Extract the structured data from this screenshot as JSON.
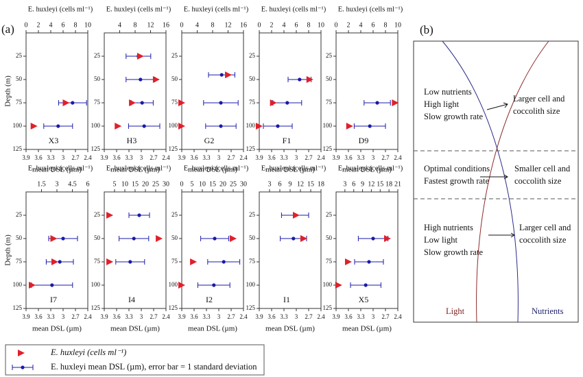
{
  "figure_labels": {
    "a": "(a)",
    "b": "(b)"
  },
  "chart_data": [
    {
      "type": "scatter",
      "title": "X3",
      "x_label": "mean DSL (µm)",
      "x2_label": "E. huxleyi (cells ml⁻¹)",
      "y_label": "Depth (m)",
      "xlim": [
        3.9,
        2.4
      ],
      "xticks": [
        3.9,
        3.6,
        3.3,
        3,
        2.7,
        2.4
      ],
      "x2lim": [
        0,
        10
      ],
      "x2ticks": [
        0,
        2,
        4,
        6,
        8,
        10
      ],
      "ylim": [
        0,
        125
      ],
      "yticks": [
        25,
        50,
        75,
        100,
        125
      ],
      "y_inverted": true,
      "y": [
        75,
        100
      ],
      "cells": {
        "color": "#e0202a",
        "values": [
          6.5,
          1.3
        ]
      },
      "dsl": {
        "color": "#1a1aa8",
        "values": [
          2.77,
          3.12
        ],
        "errors": [
          0.34,
          0.35
        ]
      }
    },
    {
      "type": "scatter",
      "title": "H3",
      "x_label": "mean DSL (µm)",
      "x2_label": "E. huxleyi (cells ml⁻¹)",
      "xlim": [
        3.9,
        2.4
      ],
      "xticks": [
        3.9,
        3.6,
        3.3,
        3,
        2.7,
        2.4
      ],
      "x2lim": [
        0,
        16
      ],
      "x2ticks": [
        4,
        8,
        12,
        16
      ],
      "ylim": [
        0,
        125
      ],
      "yticks": [
        25,
        50,
        75,
        100,
        125
      ],
      "y_inverted": true,
      "y": [
        25,
        50,
        75,
        100
      ],
      "cells": {
        "color": "#e0202a",
        "values": [
          9.4,
          13.5,
          7.3,
          3.6
        ]
      },
      "dsl": {
        "color": "#1a1aa8",
        "values": [
          3.07,
          3.02,
          2.98,
          2.93
        ],
        "errors": [
          0.3,
          0.35,
          0.27,
          0.38
        ]
      }
    },
    {
      "type": "scatter",
      "title": "G2",
      "x_label": "mean DSL (µm)",
      "x2_label": "E. huxleyi (cells ml⁻¹)",
      "xlim": [
        3.9,
        2.4
      ],
      "xticks": [
        3.9,
        3.6,
        3.3,
        3,
        2.7,
        2.4
      ],
      "x2lim": [
        0,
        16
      ],
      "x2ticks": [
        0,
        4,
        8,
        12,
        16
      ],
      "ylim": [
        0,
        125
      ],
      "yticks": [
        25,
        50,
        75,
        100,
        125
      ],
      "y_inverted": true,
      "y": [
        45,
        75,
        100
      ],
      "cells": {
        "color": "#e0202a",
        "values": [
          12.1,
          0,
          0
        ]
      },
      "dsl": {
        "color": "#1a1aa8",
        "values": [
          2.93,
          2.95,
          2.95
        ],
        "errors": [
          0.32,
          0.42,
          0.37
        ]
      }
    },
    {
      "type": "scatter",
      "title": "F1",
      "x_label": "mean DSL (µm)",
      "x2_label": "E. huxleyi (cells ml⁻¹)",
      "xlim": [
        3.9,
        2.4
      ],
      "xticks": [
        3.9,
        3.6,
        3.3,
        3,
        2.7,
        2.4
      ],
      "x2lim": [
        0,
        10
      ],
      "x2ticks": [
        0,
        2,
        4,
        6,
        8,
        10
      ],
      "ylim": [
        0,
        125
      ],
      "yticks": [
        25,
        50,
        75,
        100,
        125
      ],
      "y_inverted": true,
      "y": [
        50,
        75,
        100
      ],
      "cells": {
        "color": "#e0202a",
        "values": [
          8.2,
          2.3,
          0
        ]
      },
      "dsl": {
        "color": "#1a1aa8",
        "values": [
          2.92,
          3.22,
          3.45
        ],
        "errors": [
          0.28,
          0.35,
          0.35
        ]
      }
    },
    {
      "type": "scatter",
      "title": "D9",
      "x_label": "mean DSL (µm)",
      "x2_label": "E. huxleyi (cells ml⁻¹)",
      "xlim": [
        3.9,
        2.4
      ],
      "xticks": [
        3.9,
        3.6,
        3.3,
        3,
        2.7,
        2.4
      ],
      "x2lim": [
        0,
        10
      ],
      "x2ticks": [
        0,
        2,
        4,
        6,
        8,
        10
      ],
      "ylim": [
        0,
        125
      ],
      "yticks": [
        25,
        50,
        75,
        100,
        125
      ],
      "y_inverted": true,
      "y": [
        75,
        100
      ],
      "cells": {
        "color": "#e0202a",
        "values": [
          9.6,
          2.2
        ]
      },
      "dsl": {
        "color": "#1a1aa8",
        "values": [
          2.9,
          3.08
        ],
        "errors": [
          0.32,
          0.38
        ]
      }
    },
    {
      "type": "scatter",
      "title": "I7",
      "x_label": "mean DSL (µm)",
      "x2_label": "E. huxleyi (cells ml⁻¹)",
      "y_label": "Depth (m)",
      "xlim": [
        3.9,
        2.4
      ],
      "xticks": [
        3.9,
        3.6,
        3.3,
        3,
        2.7,
        2.4
      ],
      "x2lim": [
        0,
        6
      ],
      "x2ticks": [
        1.5,
        3,
        4.5,
        6
      ],
      "ylim": [
        0,
        125
      ],
      "yticks": [
        25,
        50,
        75,
        100,
        125
      ],
      "y_inverted": true,
      "y": [
        50,
        75,
        100
      ],
      "cells": {
        "color": "#e0202a",
        "values": [
          2.7,
          2.8,
          0.6
        ]
      },
      "dsl": {
        "color": "#1a1aa8",
        "values": [
          3.0,
          3.08,
          3.27
        ],
        "errors": [
          0.35,
          0.33,
          0.5
        ]
      }
    },
    {
      "type": "scatter",
      "title": "I4",
      "x_label": "mean DSL (µm)",
      "x2_label": "E. huxleyi (cells ml⁻¹)",
      "xlim": [
        3.9,
        2.4
      ],
      "xticks": [
        3.9,
        3.6,
        3.3,
        3,
        2.7,
        2.4
      ],
      "x2lim": [
        0,
        30
      ],
      "x2ticks": [
        5,
        10,
        15,
        20,
        25,
        30
      ],
      "ylim": [
        0,
        125
      ],
      "yticks": [
        25,
        50,
        75,
        100,
        125
      ],
      "y_inverted": true,
      "y": [
        25,
        50,
        75
      ],
      "cells": {
        "color": "#e0202a",
        "values": [
          2.7,
          26.7,
          2.7
        ]
      },
      "dsl": {
        "color": "#1a1aa8",
        "values": [
          3.05,
          3.18,
          3.27
        ],
        "errors": [
          0.25,
          0.36,
          0.35
        ]
      }
    },
    {
      "type": "scatter",
      "title": "I2",
      "x_label": "mean DSL (µm)",
      "x2_label": "E. huxleyi (cells ml⁻¹)",
      "xlim": [
        3.9,
        2.4
      ],
      "xticks": [
        3.9,
        3.6,
        3.3,
        3,
        2.7,
        2.4
      ],
      "x2lim": [
        0,
        30
      ],
      "x2ticks": [
        0,
        5,
        10,
        15,
        20,
        25,
        30
      ],
      "ylim": [
        0,
        125
      ],
      "yticks": [
        25,
        50,
        75,
        100,
        125
      ],
      "y_inverted": true,
      "y": [
        50,
        75,
        100
      ],
      "cells": {
        "color": "#e0202a",
        "values": [
          25,
          5.7,
          0
        ]
      },
      "dsl": {
        "color": "#1a1aa8",
        "values": [
          3.1,
          2.88,
          3.12
        ],
        "errors": [
          0.34,
          0.39,
          0.39
        ]
      }
    },
    {
      "type": "scatter",
      "title": "I1",
      "x_label": "mean DSL (µm)",
      "x2_label": "E. huxleyi (cells ml⁻¹)",
      "xlim": [
        3.9,
        2.4
      ],
      "xticks": [
        3.9,
        3.6,
        3.3,
        3,
        2.7,
        2.4
      ],
      "x2lim": [
        0,
        18
      ],
      "x2ticks": [
        3,
        6,
        9,
        12,
        15,
        18
      ],
      "ylim": [
        0,
        125
      ],
      "yticks": [
        25,
        50,
        75,
        100,
        125
      ],
      "y_inverted": true,
      "y": [
        25,
        50
      ],
      "cells": {
        "color": "#e0202a",
        "values": [
          10.8,
          13
        ]
      },
      "dsl": {
        "color": "#1a1aa8",
        "values": [
          3.03,
          3.07
        ],
        "errors": [
          0.33,
          0.32
        ]
      }
    },
    {
      "type": "scatter",
      "title": "X5",
      "x_label": "mean DSL (µm)",
      "x2_label": "E. huxleyi (cells ml⁻¹)",
      "xlim": [
        3.9,
        2.4
      ],
      "xticks": [
        3.9,
        3.6,
        3.3,
        3,
        2.7,
        2.4
      ],
      "x2lim": [
        0,
        21
      ],
      "x2ticks": [
        3,
        6,
        9,
        12,
        15,
        18,
        21
      ],
      "ylim": [
        0,
        125
      ],
      "yticks": [
        25,
        50,
        75,
        100,
        125
      ],
      "y_inverted": true,
      "y": [
        50,
        75,
        100
      ],
      "cells": {
        "color": "#e0202a",
        "values": [
          17.5,
          4.2,
          0.9
        ]
      },
      "dsl": {
        "color": "#1a1aa8",
        "values": [
          3.0,
          3.1,
          3.18
        ],
        "errors": [
          0.36,
          0.35,
          0.37
        ]
      }
    }
  ],
  "legend": {
    "items": [
      "E. huxleyi (cells ml⁻¹)",
      "E. huxleyi mean DSL (µm), error bar = 1 standard deviation"
    ]
  },
  "diagram": {
    "zones": [
      {
        "conditions": [
          "Low nutrients",
          "High light",
          "Slow growth rate"
        ],
        "outcome": [
          "Larger cell and",
          "coccolith size"
        ]
      },
      {
        "conditions": [
          "Optimal conditions",
          "Fastest growth rate"
        ],
        "outcome": [
          "Smaller cell and",
          "coccolith size"
        ]
      },
      {
        "conditions": [
          "High nutrients",
          "Low light",
          "Slow growth rate"
        ],
        "outcome": [
          "Larger cell and",
          "coccolith size"
        ]
      }
    ],
    "curves": {
      "light": "Light",
      "nutrients": "Nutrients"
    }
  }
}
